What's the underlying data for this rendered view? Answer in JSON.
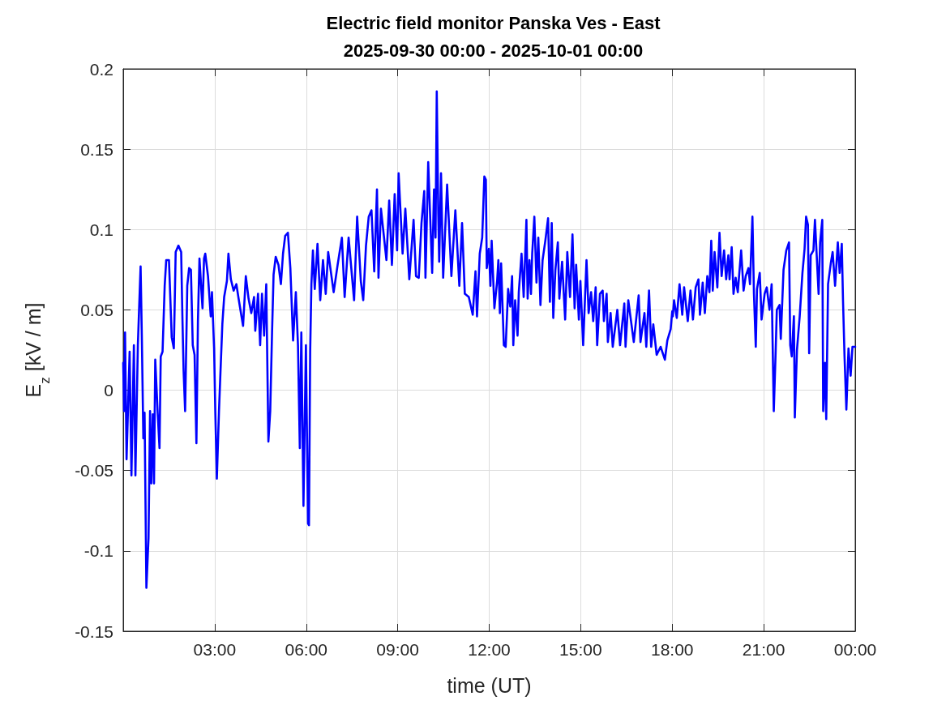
{
  "chart_data": {
    "type": "line",
    "title": "Electric field monitor Panska Ves - East",
    "subtitle": "2025-09-30 00:00 - 2025-10-01 00:00",
    "xlabel": "time (UT)",
    "ylabel": "E$_{z}$ [kV / m]",
    "xlim": [
      0,
      24
    ],
    "xticks": [
      {
        "value": 3,
        "label": "03:00"
      },
      {
        "value": 6,
        "label": "06:00"
      },
      {
        "value": 9,
        "label": "09:00"
      },
      {
        "value": 12,
        "label": "12:00"
      },
      {
        "value": 15,
        "label": "15:00"
      },
      {
        "value": 18,
        "label": "18:00"
      },
      {
        "value": 21,
        "label": "21:00"
      },
      {
        "value": 24,
        "label": "00:00"
      }
    ],
    "ylim": [
      -0.15,
      0.2
    ],
    "yticks": [
      -0.15,
      -0.1,
      -0.05,
      0,
      0.05,
      0.1,
      0.15,
      0.2
    ],
    "grid": true,
    "marker": "none",
    "line_style": "solid",
    "series": [
      {
        "color": "#0000ff",
        "x": [
          0,
          0.03,
          0.06,
          0.11,
          0.21,
          0.27,
          0.35,
          0.4,
          0.48,
          0.52,
          0.57,
          0.61,
          0.66,
          0.7,
          0.76,
          0.83,
          0.88,
          0.92,
          0.97,
          1.01,
          1.05,
          1.13,
          1.19,
          1.23,
          1.29,
          1.36,
          1.41,
          1.5,
          1.59,
          1.66,
          1.72,
          1.81,
          1.9,
          1.94,
          1.98,
          2.03,
          2.1,
          2.16,
          2.22,
          2.28,
          2.34,
          2.4,
          2.45,
          2.5,
          2.56,
          2.6,
          2.65,
          2.69,
          2.78,
          2.87,
          2.91,
          2.98,
          3.02,
          3.07,
          3.14,
          3.18,
          3.25,
          3.31,
          3.4,
          3.45,
          3.53,
          3.62,
          3.71,
          3.8,
          3.93,
          4.02,
          4.11,
          4.2,
          4.29,
          4.33,
          4.42,
          4.49,
          4.55,
          4.62,
          4.69,
          4.76,
          4.82,
          4.88,
          4.93,
          5.0,
          5.09,
          5.17,
          5.24,
          5.31,
          5.4,
          5.48,
          5.57,
          5.66,
          5.73,
          5.79,
          5.84,
          5.91,
          5.99,
          6.06,
          6.09,
          6.13,
          6.17,
          6.22,
          6.28,
          6.37,
          6.46,
          6.55,
          6.64,
          6.72,
          6.9,
          7.03,
          7.17,
          7.26,
          7.39,
          7.57,
          7.67,
          7.79,
          7.87,
          7.96,
          8.05,
          8.14,
          8.23,
          8.32,
          8.37,
          8.45,
          8.63,
          8.72,
          8.81,
          8.9,
          8.98,
          9.03,
          9.16,
          9.25,
          9.38,
          9.52,
          9.6,
          9.69,
          9.78,
          9.87,
          9.91,
          10.0,
          10.13,
          10.19,
          10.24,
          10.28,
          10.33,
          10.36,
          10.42,
          10.49,
          10.62,
          10.76,
          10.89,
          11.02,
          11.11,
          11.2,
          11.33,
          11.46,
          11.55,
          11.6,
          11.69,
          11.77,
          11.84,
          11.89,
          11.92,
          11.99,
          12.04,
          12.08,
          12.17,
          12.26,
          12.3,
          12.35,
          12.39,
          12.48,
          12.54,
          12.62,
          12.69,
          12.75,
          12.79,
          12.85,
          12.93,
          12.97,
          13.06,
          13.13,
          13.22,
          13.26,
          13.32,
          13.37,
          13.41,
          13.48,
          13.55,
          13.61,
          13.68,
          13.75,
          13.84,
          13.93,
          13.99,
          14.05,
          14.1,
          14.17,
          14.25,
          14.3,
          14.39,
          14.49,
          14.56,
          14.65,
          14.73,
          14.8,
          14.85,
          14.94,
          14.99,
          15.08,
          15.19,
          15.26,
          15.34,
          15.41,
          15.49,
          15.54,
          15.63,
          15.72,
          15.76,
          15.85,
          15.89,
          15.98,
          16.05,
          16.2,
          16.29,
          16.43,
          16.47,
          16.56,
          16.74,
          16.9,
          16.96,
          17.09,
          17.15,
          17.24,
          17.31,
          17.38,
          17.49,
          17.62,
          17.76,
          17.84,
          17.95,
          18.0,
          18.02,
          18.06,
          18.15,
          18.24,
          18.33,
          18.39,
          18.51,
          18.6,
          18.68,
          18.77,
          18.86,
          18.91,
          19.0,
          19.07,
          19.15,
          19.22,
          19.28,
          19.33,
          19.39,
          19.48,
          19.55,
          19.62,
          19.7,
          19.77,
          19.84,
          19.88,
          19.95,
          20.01,
          20.08,
          20.15,
          20.26,
          20.34,
          20.41,
          20.5,
          20.55,
          20.63,
          20.68,
          20.74,
          20.78,
          20.87,
          20.93,
          21.03,
          21.1,
          21.19,
          21.26,
          21.33,
          21.39,
          21.43,
          21.52,
          21.56,
          21.65,
          21.74,
          21.83,
          21.87,
          21.92,
          21.99,
          22.02,
          22.09,
          22.18,
          22.27,
          22.34,
          22.39,
          22.45,
          22.49,
          22.54,
          22.63,
          22.68,
          22.8,
          22.85,
          22.92,
          22.95,
          23.01,
          23.05,
          23.11,
          23.2,
          23.26,
          23.34,
          23.43,
          23.49,
          23.56,
          23.6,
          23.65,
          23.71,
          23.78,
          23.85,
          23.91,
          24.0
        ],
        "values": [
          0.017,
          -0.013,
          0.036,
          -0.043,
          0.024,
          -0.053,
          0.028,
          -0.053,
          0.028,
          0.05,
          0.077,
          0.034,
          -0.03,
          -0.014,
          -0.123,
          -0.092,
          -0.013,
          -0.058,
          -0.015,
          -0.058,
          0.019,
          -0.014,
          -0.036,
          0.021,
          0.024,
          0.065,
          0.081,
          0.081,
          0.033,
          0.026,
          0.086,
          0.09,
          0.086,
          0.046,
          0.012,
          -0.013,
          0.065,
          0.076,
          0.075,
          0.028,
          0.022,
          -0.033,
          0.043,
          0.082,
          0.063,
          0.051,
          0.082,
          0.085,
          0.071,
          0.046,
          0.061,
          0.026,
          -0.014,
          -0.055,
          -0.013,
          0.007,
          0.041,
          0.058,
          0.068,
          0.085,
          0.069,
          0.062,
          0.066,
          0.055,
          0.04,
          0.071,
          0.057,
          0.048,
          0.058,
          0.037,
          0.06,
          0.028,
          0.06,
          0.034,
          0.066,
          -0.032,
          -0.013,
          0.036,
          0.072,
          0.083,
          0.078,
          0.066,
          0.085,
          0.096,
          0.098,
          0.076,
          0.031,
          0.061,
          0.028,
          -0.036,
          0.036,
          -0.072,
          0.028,
          -0.083,
          -0.084,
          0.024,
          0.066,
          0.087,
          0.063,
          0.091,
          0.056,
          0.081,
          0.06,
          0.086,
          0.061,
          0.078,
          0.095,
          0.058,
          0.095,
          0.056,
          0.108,
          0.068,
          0.056,
          0.09,
          0.108,
          0.112,
          0.074,
          0.125,
          0.07,
          0.113,
          0.081,
          0.118,
          0.078,
          0.122,
          0.087,
          0.135,
          0.085,
          0.113,
          0.069,
          0.106,
          0.071,
          0.07,
          0.104,
          0.124,
          0.07,
          0.142,
          0.073,
          0.125,
          0.095,
          0.186,
          0.11,
          0.08,
          0.135,
          0.07,
          0.128,
          0.071,
          0.112,
          0.065,
          0.104,
          0.06,
          0.058,
          0.047,
          0.074,
          0.046,
          0.085,
          0.095,
          0.133,
          0.131,
          0.076,
          0.088,
          0.065,
          0.093,
          0.051,
          0.068,
          0.081,
          0.048,
          0.079,
          0.028,
          0.027,
          0.063,
          0.052,
          0.071,
          0.028,
          0.056,
          0.034,
          0.061,
          0.085,
          0.058,
          0.106,
          0.057,
          0.081,
          0.06,
          0.085,
          0.108,
          0.067,
          0.095,
          0.053,
          0.081,
          0.093,
          0.107,
          0.055,
          0.104,
          0.045,
          0.075,
          0.092,
          0.057,
          0.08,
          0.044,
          0.086,
          0.058,
          0.097,
          0.051,
          0.078,
          0.044,
          0.068,
          0.028,
          0.081,
          0.048,
          0.061,
          0.043,
          0.064,
          0.028,
          0.06,
          0.062,
          0.043,
          0.06,
          0.03,
          0.048,
          0.027,
          0.05,
          0.028,
          0.054,
          0.027,
          0.056,
          0.03,
          0.059,
          0.03,
          0.048,
          0.027,
          0.062,
          0.027,
          0.041,
          0.022,
          0.027,
          0.019,
          0.031,
          0.038,
          0.049,
          0.046,
          0.056,
          0.045,
          0.066,
          0.047,
          0.064,
          0.043,
          0.062,
          0.044,
          0.064,
          0.069,
          0.047,
          0.067,
          0.048,
          0.071,
          0.061,
          0.093,
          0.062,
          0.086,
          0.064,
          0.098,
          0.071,
          0.087,
          0.069,
          0.084,
          0.069,
          0.089,
          0.06,
          0.07,
          0.061,
          0.087,
          0.062,
          0.071,
          0.076,
          0.066,
          0.108,
          0.06,
          0.027,
          0.063,
          0.073,
          0.044,
          0.06,
          0.064,
          0.05,
          0.066,
          -0.013,
          0.023,
          0.05,
          0.053,
          0.032,
          0.075,
          0.087,
          0.092,
          0.028,
          0.021,
          0.046,
          -0.017,
          0.025,
          0.046,
          0.073,
          0.088,
          0.108,
          0.103,
          0.023,
          0.084,
          0.087,
          0.106,
          0.06,
          0.092,
          0.106,
          -0.013,
          0.017,
          -0.018,
          0.066,
          0.079,
          0.086,
          0.065,
          0.092,
          0.073,
          0.091,
          0.056,
          0.021,
          -0.012,
          0.026,
          0.009,
          0.027,
          0.027
        ]
      }
    ]
  }
}
